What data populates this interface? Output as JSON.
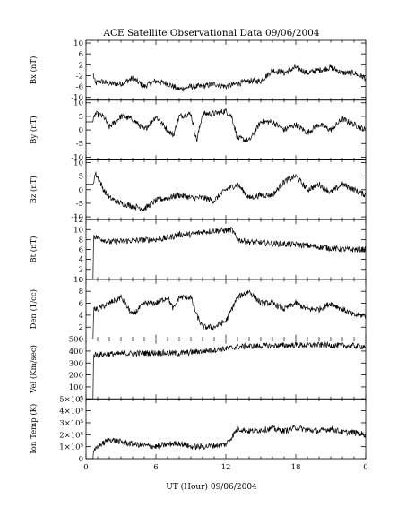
{
  "title": "ACE Satellite Observational Data   09/06/2004",
  "x_axis": {
    "label": "UT (Hour)   09/06/2004",
    "ticks": [
      "0",
      "6",
      "12",
      "18",
      "0"
    ],
    "range_hours": [
      0,
      24
    ]
  },
  "chart_data": [
    {
      "type": "line",
      "ylabel": "Bx (nT)",
      "ylim": [
        -11,
        11
      ],
      "yticks": [
        -10,
        -6,
        -2,
        2,
        6,
        10
      ],
      "ytick_labels": [
        "-10",
        "-6",
        "-2",
        "2",
        "6",
        "10"
      ],
      "color": "#000000",
      "series": [
        {
          "x": [
            0,
            0.6,
            0.8,
            1.2,
            2,
            3,
            4,
            5,
            6,
            7,
            8,
            9,
            10,
            11,
            12,
            13,
            14,
            15,
            16,
            17,
            18,
            19,
            20,
            21,
            22,
            23,
            24
          ],
          "values": [
            -1,
            -1,
            -5,
            -4,
            -5,
            -5,
            -3,
            -6,
            -4,
            -5,
            -7,
            -6,
            -6,
            -5,
            -6,
            -5,
            -4,
            -4,
            0,
            -1,
            1,
            -1,
            0,
            1,
            -1,
            -1,
            -3
          ]
        }
      ]
    },
    {
      "type": "line",
      "ylabel": "By (nT)",
      "ylim": [
        -11,
        11
      ],
      "yticks": [
        -10,
        -5,
        0,
        5,
        10
      ],
      "ytick_labels": [
        "-10",
        "-5",
        "0",
        "5",
        "10"
      ],
      "color": "#000000",
      "series": [
        {
          "x": [
            0,
            0.6,
            0.8,
            1.5,
            2,
            3,
            4,
            5,
            6,
            7,
            7.5,
            8,
            9,
            9.5,
            10,
            11,
            12,
            12.5,
            13,
            14,
            15,
            16,
            17,
            18,
            19,
            20,
            21,
            22,
            23,
            24
          ],
          "values": [
            3,
            3,
            6,
            5,
            1,
            5,
            4,
            0,
            5,
            0,
            -2,
            5,
            6,
            -4,
            6,
            6,
            7,
            5,
            -3,
            -4,
            3,
            3,
            0,
            2,
            -1,
            2,
            0,
            4,
            2,
            0
          ]
        }
      ]
    },
    {
      "type": "line",
      "ylabel": "Bz (nT)",
      "ylim": [
        -11,
        11
      ],
      "yticks": [
        -10,
        -5,
        0,
        5,
        10
      ],
      "ytick_labels": [
        "-10",
        "-5",
        "0",
        "5",
        "10"
      ],
      "color": "#000000",
      "series": [
        {
          "x": [
            0,
            0.6,
            0.8,
            1.2,
            1.5,
            2,
            3,
            4,
            5,
            6,
            7,
            8,
            9,
            10,
            11,
            12,
            13,
            14,
            15,
            16,
            17,
            18,
            19,
            20,
            21,
            22,
            23,
            24
          ],
          "values": [
            2,
            2,
            6,
            3,
            0,
            -3,
            -5,
            -6,
            -7,
            -4,
            -3,
            -2,
            -3,
            -3,
            -4,
            0,
            2,
            -3,
            -2,
            -2,
            3,
            5,
            0,
            2,
            -1,
            2,
            0,
            -2
          ]
        }
      ]
    },
    {
      "type": "line",
      "ylabel": "Bt (nT)",
      "ylim": [
        0,
        12
      ],
      "yticks": [
        0,
        2,
        4,
        6,
        8,
        10,
        12
      ],
      "ytick_labels": [
        "0",
        "2",
        "4",
        "6",
        "8",
        "10",
        "12"
      ],
      "color": "#000000",
      "series": [
        {
          "x": [
            0,
            0.6,
            0.65,
            0.8,
            1.5,
            2,
            4,
            6,
            7,
            8,
            9,
            10,
            11,
            12,
            12.5,
            13,
            14,
            16,
            18,
            20,
            22,
            24
          ],
          "values": [
            0,
            0,
            9,
            8.5,
            8,
            7.5,
            7.8,
            8,
            8.3,
            9,
            9,
            9.5,
            9.8,
            9.8,
            10,
            8,
            7.5,
            7.2,
            7,
            6.5,
            6,
            6
          ]
        }
      ]
    },
    {
      "type": "line",
      "ylabel": "Den (1/cc)",
      "ylim": [
        0,
        10
      ],
      "yticks": [
        0,
        2,
        4,
        6,
        8,
        10
      ],
      "ytick_labels": [
        "0",
        "2",
        "4",
        "6",
        "8",
        "10"
      ],
      "color": "#000000",
      "series": [
        {
          "x": [
            0,
            0.6,
            0.65,
            1,
            2,
            3,
            4,
            5,
            6,
            7,
            7.5,
            8,
            9,
            9.5,
            10,
            11,
            12,
            13,
            14,
            15,
            16,
            17,
            18,
            19,
            20,
            21,
            22,
            23,
            24
          ],
          "values": [
            0,
            0,
            5,
            5,
            6,
            7,
            4,
            6,
            6,
            7,
            5,
            7,
            7,
            4,
            2,
            2,
            3,
            7,
            8,
            6,
            6,
            5,
            6,
            5,
            5,
            6,
            5,
            4,
            4
          ]
        }
      ]
    },
    {
      "type": "line",
      "ylabel": "Vel (Km/sec)",
      "ylim": [
        0,
        500
      ],
      "yticks": [
        0,
        100,
        200,
        300,
        400,
        500
      ],
      "ytick_labels": [
        "0",
        "100",
        "200",
        "300",
        "400",
        "500"
      ],
      "color": "#000000",
      "series": [
        {
          "x": [
            0,
            0.6,
            0.65,
            1,
            2,
            4,
            6,
            8,
            10,
            12,
            13,
            14,
            16,
            18,
            20,
            22,
            24
          ],
          "values": [
            0,
            0,
            370,
            370,
            375,
            380,
            385,
            380,
            400,
            420,
            435,
            440,
            445,
            450,
            450,
            445,
            440
          ]
        }
      ]
    },
    {
      "type": "line",
      "ylabel": "Ion Temp (K)",
      "ylim": [
        0,
        500000
      ],
      "yticks": [
        0,
        100000,
        200000,
        300000,
        400000,
        500000
      ],
      "ytick_labels": [
        "0",
        "1×10⁵",
        "2×10⁵",
        "3×10⁵",
        "4×10⁵",
        "5×10⁵"
      ],
      "color": "#000000",
      "series": [
        {
          "x": [
            0,
            0.6,
            0.65,
            1,
            2,
            3,
            4,
            6,
            7,
            8,
            9,
            10,
            11,
            12,
            12.5,
            13,
            14,
            15,
            16,
            17,
            18,
            19,
            20,
            21,
            22,
            23,
            24
          ],
          "values": [
            0,
            0,
            50000,
            100000,
            160000,
            140000,
            120000,
            100000,
            120000,
            130000,
            100000,
            100000,
            110000,
            120000,
            180000,
            250000,
            230000,
            240000,
            250000,
            230000,
            260000,
            240000,
            230000,
            250000,
            220000,
            220000,
            200000
          ]
        }
      ]
    }
  ]
}
